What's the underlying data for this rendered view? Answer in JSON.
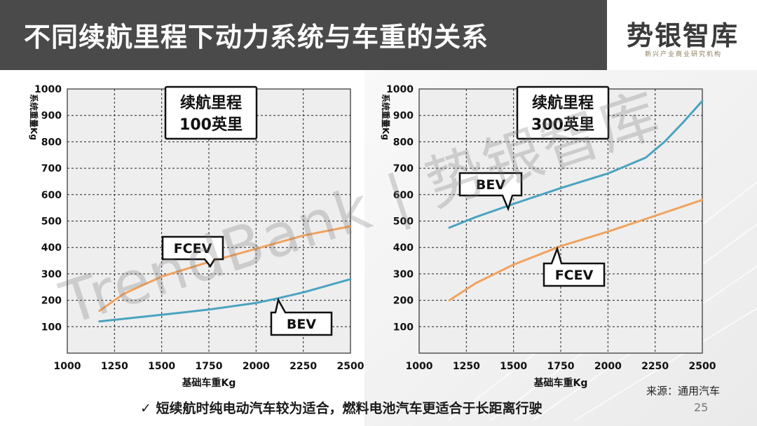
{
  "header": {
    "title": "不同续航里程下动力系统与车重的关系",
    "logo_text": "势银智库",
    "logo_subtitle": "新兴产业商业研究机构"
  },
  "watermark": "TrendBank | 势银智库",
  "footnote": "短续航时纯电动汽车较为适合，燃料电池汽车更适合于长距离行驶",
  "footnote_icon": "check-icon",
  "source": "来源：通用汽车",
  "page_number": "25",
  "colors": {
    "bev": "#4aa3c0",
    "fcev": "#f0a25e",
    "title_bar": "#4a4a4a",
    "plot_bg": "#eeeeee"
  },
  "chart_data": [
    {
      "type": "line",
      "title": "",
      "range_label_line1": "续航里程",
      "range_label_line2": "100英里",
      "xlabel": "基础车重Kg",
      "ylabel": "系统重量Kg",
      "xlim": [
        1000,
        2500
      ],
      "ylim": [
        0,
        1000
      ],
      "x_ticks": [
        1000,
        1250,
        1500,
        1750,
        2000,
        2250,
        2500
      ],
      "y_ticks": [
        100,
        200,
        300,
        400,
        500,
        600,
        700,
        800,
        900,
        1000
      ],
      "grid": true,
      "series": [
        {
          "name": "FCEV",
          "color": "#f0a25e",
          "x": [
            1170,
            1300,
            1500,
            1750,
            2000,
            2250,
            2500
          ],
          "y": [
            160,
            225,
            290,
            345,
            395,
            445,
            480
          ]
        },
        {
          "name": "BEV",
          "color": "#4aa3c0",
          "x": [
            1170,
            1300,
            1500,
            1750,
            2000,
            2100,
            2250,
            2500
          ],
          "y": [
            120,
            130,
            145,
            165,
            190,
            205,
            230,
            280
          ]
        }
      ],
      "callouts": [
        {
          "text": "FCEV",
          "series": "FCEV"
        },
        {
          "text": "BEV",
          "series": "BEV"
        }
      ]
    },
    {
      "type": "line",
      "title": "",
      "range_label_line1": "续航里程",
      "range_label_line2": "300英里",
      "xlabel": "基础车重Kg",
      "ylabel": "系统重量Kg",
      "xlim": [
        1000,
        2500
      ],
      "ylim": [
        0,
        1000
      ],
      "x_ticks": [
        1000,
        1250,
        1500,
        1750,
        2000,
        2250,
        2500
      ],
      "y_ticks": [
        100,
        200,
        300,
        400,
        500,
        600,
        700,
        800,
        900,
        1000
      ],
      "grid": true,
      "series": [
        {
          "name": "BEV",
          "color": "#4aa3c0",
          "x": [
            1160,
            1300,
            1500,
            1750,
            2000,
            2200,
            2300,
            2400,
            2500
          ],
          "y": [
            475,
            515,
            565,
            625,
            680,
            740,
            800,
            875,
            955
          ]
        },
        {
          "name": "FCEV",
          "color": "#f0a25e",
          "x": [
            1160,
            1300,
            1500,
            1750,
            2000,
            2250,
            2500
          ],
          "y": [
            200,
            265,
            335,
            405,
            460,
            520,
            580
          ]
        }
      ],
      "callouts": [
        {
          "text": "BEV",
          "series": "BEV"
        },
        {
          "text": "FCEV",
          "series": "FCEV"
        }
      ]
    }
  ]
}
